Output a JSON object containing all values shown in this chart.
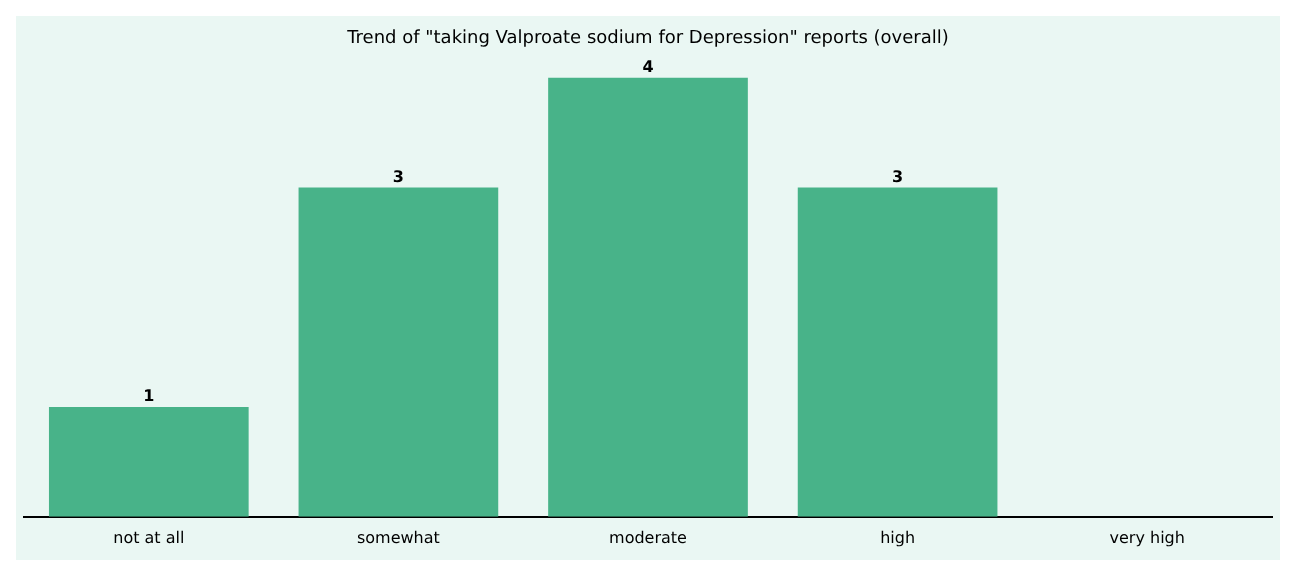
{
  "chart_data": {
    "type": "bar",
    "title": "Trend of \"taking Valproate sodium for Depression\" reports (overall)",
    "categories": [
      "not at all",
      "somewhat",
      "moderate",
      "high",
      "very high"
    ],
    "values": [
      1,
      3,
      4,
      3,
      0
    ],
    "value_labels": [
      "1",
      "3",
      "4",
      "3",
      null
    ],
    "color": "#48b389",
    "grid": false,
    "legend": false
  }
}
